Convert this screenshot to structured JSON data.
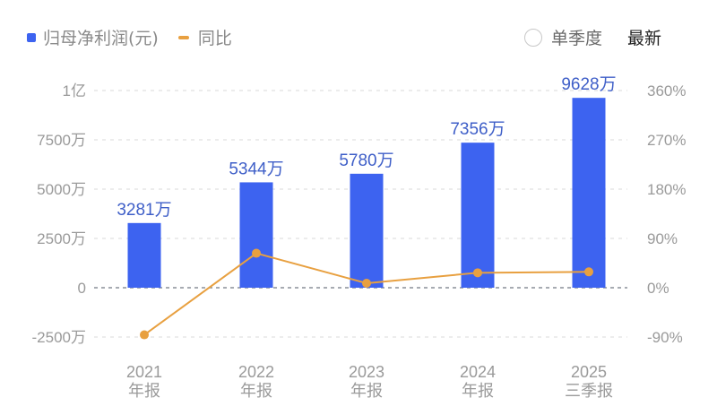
{
  "legend": {
    "bar_label": "归母净利润(元)",
    "line_label": "同比"
  },
  "controls": {
    "single_quarter_label": "单季度",
    "single_quarter_checked": false,
    "latest_label": "最新"
  },
  "colors": {
    "bar": "#3d63f0",
    "line": "#e8a040",
    "value_label": "#3f5fc8",
    "axis_text": "#9a9a9a",
    "grid": "#d8d8d8",
    "zero_line": "#8a8f99"
  },
  "chart_data": {
    "type": "bar+line",
    "title": "",
    "categories": [
      "2021\n年报",
      "2022\n年报",
      "2023\n年报",
      "2024\n年报",
      "2025\n三季报"
    ],
    "category_lines": [
      [
        "2021",
        "年报"
      ],
      [
        "2022",
        "年报"
      ],
      [
        "2023",
        "年报"
      ],
      [
        "2024",
        "年报"
      ],
      [
        "2025",
        "三季报"
      ]
    ],
    "series": [
      {
        "name": "归母净利润(元)",
        "type": "bar",
        "axis": "left",
        "values": [
          32810000,
          53440000,
          57800000,
          73560000,
          96280000
        ],
        "labels": [
          "3281万",
          "5344万",
          "5780万",
          "7356万",
          "9628万"
        ]
      },
      {
        "name": "同比",
        "type": "line",
        "axis": "right",
        "unit": "%",
        "values": [
          -86,
          62.9,
          8.2,
          27.3,
          29
        ]
      }
    ],
    "left_axis": {
      "ticks": [
        100000000,
        75000000,
        50000000,
        25000000,
        0,
        -25000000
      ],
      "tick_labels": [
        "1亿",
        "7500万",
        "5000万",
        "2500万",
        "0",
        "-2500万"
      ],
      "range": [
        -25000000,
        100000000
      ]
    },
    "right_axis": {
      "ticks": [
        360,
        270,
        180,
        90,
        0,
        -90
      ],
      "tick_labels": [
        "360%",
        "270%",
        "180%",
        "90%",
        "0%",
        "-90%"
      ],
      "range": [
        -90,
        360
      ]
    },
    "grid": true,
    "legend_position": "top-left"
  }
}
